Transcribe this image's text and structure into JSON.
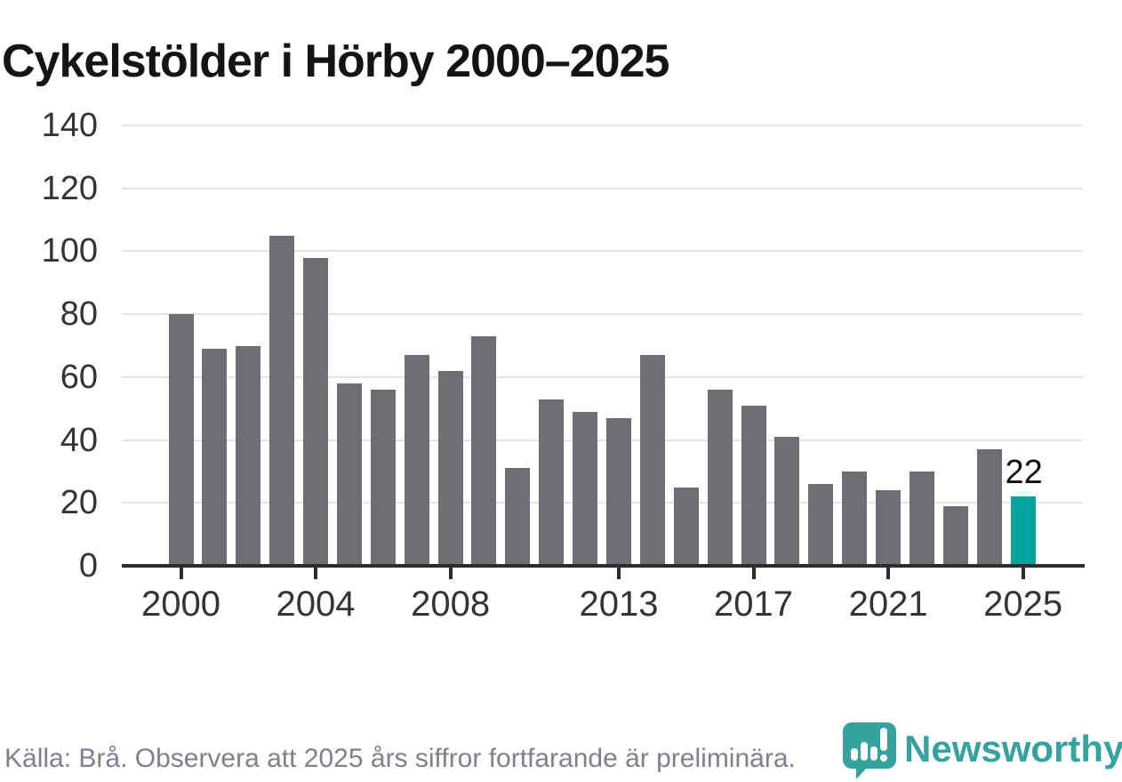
{
  "header": {
    "title": "Cykelstölder i Hörby 2000–2025"
  },
  "chart_data": {
    "type": "bar",
    "title": "Cykelstölder i Hörby 2000–2025",
    "x": [
      2000,
      2001,
      2002,
      2003,
      2004,
      2005,
      2006,
      2007,
      2008,
      2009,
      2010,
      2011,
      2012,
      2013,
      2014,
      2015,
      2016,
      2017,
      2018,
      2019,
      2020,
      2021,
      2022,
      2023,
      2024,
      2025
    ],
    "values": [
      80,
      69,
      70,
      105,
      98,
      58,
      56,
      67,
      62,
      73,
      31,
      53,
      49,
      47,
      67,
      25,
      56,
      51,
      41,
      26,
      30,
      24,
      30,
      19,
      37,
      22
    ],
    "highlight_year": 2025,
    "highlight_label": "22",
    "xlabel": "",
    "ylabel": "",
    "ylim": [
      0,
      140
    ],
    "yticks": [
      0,
      20,
      40,
      60,
      80,
      100,
      120,
      140
    ],
    "xticks": [
      2000,
      2004,
      2008,
      2013,
      2017,
      2021,
      2025
    ],
    "grid": "horizontal",
    "legend": "none",
    "bar_color": "#6f6e74",
    "highlight_color": "#00a49c"
  },
  "footer": {
    "source_text": "Källa: Brå. Observera att 2025 års siffror fortfarande är preliminära.",
    "brand": "Newsworthy",
    "brand_color": "#35a39d"
  }
}
